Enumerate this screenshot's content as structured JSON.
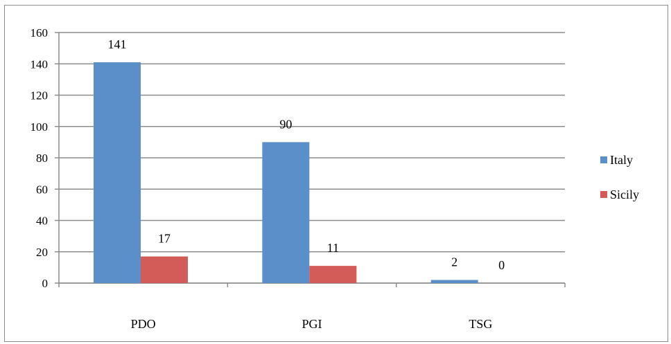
{
  "chart_data": {
    "type": "bar",
    "categories": [
      "PDO",
      "PGI",
      "TSG"
    ],
    "series": [
      {
        "name": "Italy",
        "values": [
          141,
          90,
          2
        ],
        "color": "#5b8fc9"
      },
      {
        "name": "Sicily",
        "values": [
          17,
          11,
          0
        ],
        "color": "#d35b58"
      }
    ],
    "data_labels": [
      [
        "141",
        "90",
        "2"
      ],
      [
        "17",
        "11",
        "0"
      ]
    ],
    "ylim": [
      0,
      160
    ],
    "yticks": [
      "0",
      "20",
      "40",
      "60",
      "80",
      "100",
      "120",
      "140",
      "160"
    ],
    "grid": true,
    "legend": "right",
    "title": "",
    "xlabel": "",
    "ylabel": ""
  }
}
